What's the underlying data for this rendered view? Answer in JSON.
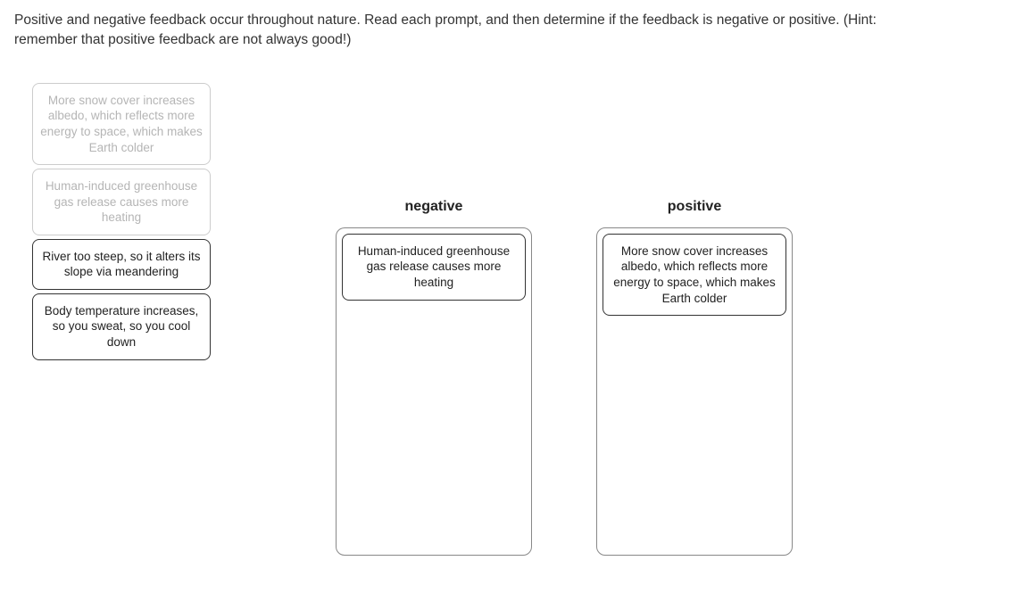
{
  "question": {
    "text": "Positive and negative feedback occur throughout nature. Read each prompt, and then determine if the feedback is negative or positive. (Hint: remember that positive feedback are not always good!)"
  },
  "source_items": [
    {
      "text": "More snow cover increases albedo, which reflects more energy to space, which makes Earth colder",
      "used": true
    },
    {
      "text": "Human-induced greenhouse gas release causes more heating",
      "used": true
    },
    {
      "text": "River too steep, so it alters its slope via meandering",
      "used": false
    },
    {
      "text": "Body temperature increases, so you sweat, so you cool down",
      "used": false
    }
  ],
  "drop_zones": {
    "negative": {
      "label": "negative",
      "items": [
        {
          "text": "Human-induced greenhouse gas release causes more heating"
        }
      ]
    },
    "positive": {
      "label": "positive",
      "items": [
        {
          "text": "More snow cover increases albedo, which reflects more energy to space, which makes Earth colder"
        }
      ]
    }
  }
}
